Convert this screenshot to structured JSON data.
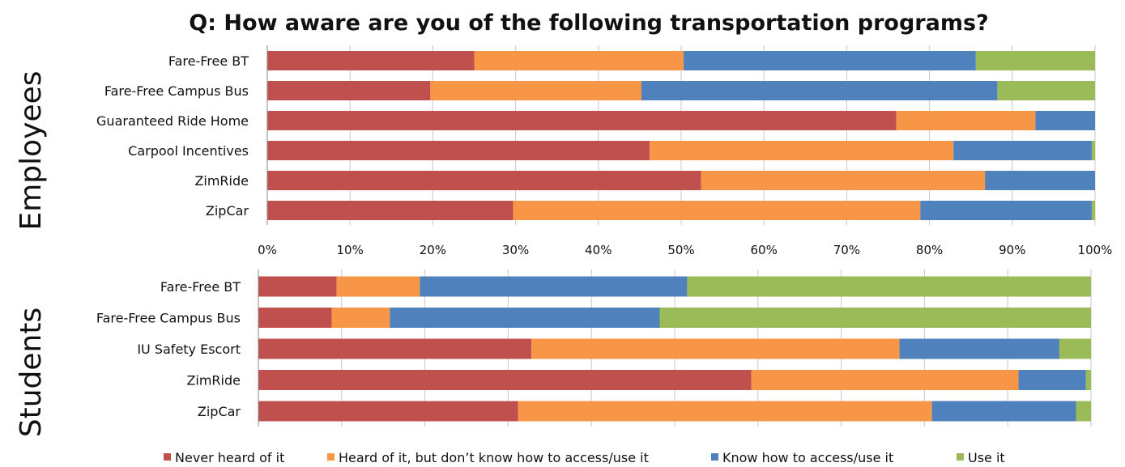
{
  "chart_data": {
    "type": "bar",
    "orientation": "horizontal",
    "stacked": true,
    "title": "Q:  How aware are you of the following transportation programs?",
    "x_ticks": [
      "0%",
      "10%",
      "20%",
      "30%",
      "40%",
      "50%",
      "60%",
      "70%",
      "80%",
      "90%",
      "100%"
    ],
    "xlim": [
      0,
      100
    ],
    "legend_position": "bottom",
    "series": [
      {
        "name": "Never heard of it",
        "color": "#c0504d"
      },
      {
        "name": "Heard of it, but don’t know how to access/use it",
        "color": "#f79646"
      },
      {
        "name": "Know how to access/use it",
        "color": "#4f81bd"
      },
      {
        "name": "Use it",
        "color": "#9bbb59"
      }
    ],
    "groups": [
      {
        "label": "Employees",
        "categories": [
          "Fare-Free BT",
          "Fare-Free Campus Bus",
          "Guaranteed Ride Home",
          "Carpool Incentives",
          "ZimRide",
          "ZipCar"
        ],
        "values": [
          [
            25,
            25.3,
            35.3,
            14.4
          ],
          [
            19.7,
            25.5,
            43,
            11.8
          ],
          [
            76,
            16.8,
            7.2,
            0
          ],
          [
            46.2,
            36.7,
            16.7,
            0.4
          ],
          [
            52.4,
            34.3,
            13.3,
            0
          ],
          [
            29.7,
            49.2,
            20.7,
            0.4
          ]
        ]
      },
      {
        "label": "Students",
        "categories": [
          "Fare-Free BT",
          "Fare-Free Campus Bus",
          "IU Safety Escort",
          "ZimRide",
          "ZipCar"
        ],
        "values": [
          [
            9.4,
            10,
            32.1,
            48.5
          ],
          [
            8.8,
            7,
            32.4,
            51.8
          ],
          [
            32.8,
            44.2,
            19.2,
            3.8
          ],
          [
            59.2,
            32.1,
            8.1,
            0.6
          ],
          [
            31.2,
            49.7,
            17.3,
            1.8
          ]
        ]
      }
    ]
  }
}
